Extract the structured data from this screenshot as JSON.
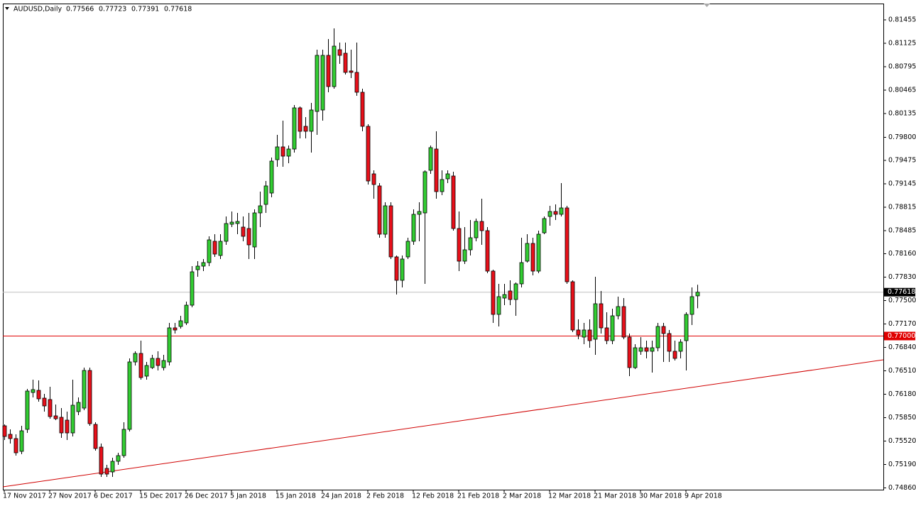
{
  "chart_data": {
    "type": "candlestick",
    "title": "AUDUSD,Daily",
    "categories": [
      "17 Nov 2017",
      null,
      null,
      null,
      null,
      null,
      null,
      null,
      "27 Nov 2017",
      null,
      null,
      null,
      null,
      null,
      null,
      null,
      "6 Dec 2017",
      null,
      null,
      null,
      null,
      null,
      null,
      null,
      "15 Dec 2017",
      null,
      null,
      null,
      null,
      null,
      null,
      null,
      "26 Dec 2017",
      null,
      null,
      null,
      null,
      null,
      null,
      null,
      "5 Jan 2018",
      null,
      null,
      null,
      null,
      null,
      null,
      null,
      "15 Jan 2018",
      null,
      null,
      null,
      null,
      null,
      null,
      null,
      "24 Jan 2018",
      null,
      null,
      null,
      null,
      null,
      null,
      null,
      "2 Feb 2018",
      null,
      null,
      null,
      null,
      null,
      null,
      null,
      "12 Feb 2018",
      null,
      null,
      null,
      null,
      null,
      null,
      null,
      "21 Feb 2018",
      null,
      null,
      null,
      null,
      null,
      null,
      null,
      "2 Mar 2018",
      null,
      null,
      null,
      null,
      null,
      null,
      null,
      "12 Mar 2018",
      null,
      null,
      null,
      null,
      null,
      null,
      null,
      "21 Mar 2018",
      null,
      null,
      null,
      null,
      null,
      null,
      null,
      "30 Mar 2018",
      null,
      null,
      null,
      null,
      null,
      null,
      null,
      "9 Apr 2018",
      null,
      null
    ],
    "open": [
      0.75735,
      0.75615,
      0.75555,
      0.75375,
      0.75685,
      0.76205,
      0.76235,
      0.76125,
      0.76105,
      0.75875,
      0.75855,
      0.75815,
      0.75635,
      0.75935,
      0.75985,
      0.76515,
      0.75755,
      0.75435,
      0.75135,
      0.75085,
      0.75235,
      0.75315,
      0.75685,
      0.76635,
      0.76755,
      0.76435,
      0.76555,
      0.76685,
      0.76555,
      0.76635,
      0.77115,
      0.77135,
      0.77185,
      0.77435,
      0.77935,
      0.77985,
      0.78035,
      0.78335,
      0.78135,
      0.78335,
      0.78575,
      0.78585,
      0.78535,
      0.78515,
      0.78255,
      0.78735,
      0.78855,
      0.79015,
      0.79485,
      0.79665,
      0.79535,
      0.79635,
      0.80215,
      0.79955,
      0.79885,
      0.80165,
      0.80185,
      0.80955,
      0.80515,
      0.81035,
      0.80985,
      0.80735,
      0.80715,
      0.80435,
      0.79955,
      0.79285,
      0.79115,
      0.78435,
      0.78835,
      0.78115,
      0.77785,
      0.78115,
      0.78335,
      0.78715,
      0.78735,
      0.79335,
      0.79635,
      0.79035,
      0.79215,
      0.79255,
      0.78515,
      0.78055,
      0.78215,
      0.78385,
      0.78615,
      0.78485,
      0.77915,
      0.77305,
      0.77535,
      0.77635,
      0.77515,
      0.77735,
      0.78055,
      0.78305,
      0.77915,
      0.78455,
      0.78685,
      0.78755,
      0.78715,
      0.78805,
      0.77765,
      0.77085,
      0.76985,
      0.77085,
      0.76955,
      0.77455,
      0.77115,
      0.76935,
      0.77285,
      0.77415,
      0.76985,
      0.76555,
      0.76785,
      0.76835,
      0.76785,
      0.76835,
      0.77135,
      0.77035,
      0.76785,
      0.76785,
      0.76935,
      0.77305,
      0.77566
    ],
    "high": [
      0.75755,
      0.75685,
      0.75615,
      0.75735,
      0.76255,
      0.76385,
      0.76375,
      0.76185,
      0.76285,
      0.76035,
      0.75985,
      0.75935,
      0.76385,
      0.76135,
      0.76555,
      0.76555,
      0.75785,
      0.75485,
      0.75185,
      0.75285,
      0.75355,
      0.75785,
      0.76685,
      0.76785,
      0.76935,
      0.76635,
      0.76735,
      0.76785,
      0.76735,
      0.77185,
      0.77185,
      0.77285,
      0.77485,
      0.77985,
      0.78055,
      0.78085,
      0.78405,
      0.78435,
      0.78435,
      0.78685,
      0.78755,
      0.78735,
      0.78685,
      0.78735,
      0.78785,
      0.79035,
      0.79185,
      0.79515,
      0.79835,
      0.80035,
      0.79685,
      0.80255,
      0.80235,
      0.80085,
      0.80285,
      0.81035,
      0.81035,
      0.81185,
      0.81335,
      0.81135,
      0.81135,
      0.81035,
      0.81135,
      0.80485,
      0.79985,
      0.79335,
      0.79155,
      0.78885,
      0.78885,
      0.78135,
      0.78135,
      0.78385,
      0.78785,
      0.78885,
      0.79335,
      0.79685,
      0.79885,
      0.79335,
      0.79335,
      0.79315,
      0.78755,
      0.78535,
      0.78635,
      0.78655,
      0.78935,
      0.78535,
      0.77935,
      0.77735,
      0.77735,
      0.77785,
      0.77755,
      0.78385,
      0.78435,
      0.78385,
      0.78485,
      0.78685,
      0.78835,
      0.78855,
      0.79155,
      0.78835,
      0.77785,
      0.77235,
      0.77185,
      0.77235,
      0.77835,
      0.77635,
      0.77335,
      0.77385,
      0.77555,
      0.77535,
      0.77035,
      0.76885,
      0.76985,
      0.76935,
      0.76935,
      0.77185,
      0.77185,
      0.77085,
      0.76935,
      0.76955,
      0.77335,
      0.77685,
      0.77723
    ],
    "low": [
      0.75535,
      0.75485,
      0.75315,
      0.75335,
      0.75635,
      0.76135,
      0.76075,
      0.75935,
      0.75835,
      0.75815,
      0.75565,
      0.75535,
      0.75585,
      0.75885,
      0.75955,
      0.75735,
      0.75385,
      0.75015,
      0.75015,
      0.75015,
      0.75185,
      0.75285,
      0.75655,
      0.76585,
      0.76385,
      0.76385,
      0.76535,
      0.76515,
      0.76515,
      0.76585,
      0.77035,
      0.77105,
      0.77155,
      0.77405,
      0.77835,
      0.77915,
      0.77985,
      0.78115,
      0.78085,
      0.78285,
      0.78535,
      0.78435,
      0.78335,
      0.78085,
      0.78085,
      0.78535,
      0.78735,
      0.78955,
      0.79385,
      0.79385,
      0.79435,
      0.79585,
      0.79785,
      0.79785,
      0.79585,
      0.79835,
      0.80035,
      0.80435,
      0.80485,
      0.80835,
      0.80685,
      0.80635,
      0.80385,
      0.79885,
      0.79135,
      0.78935,
      0.78385,
      0.78385,
      0.78085,
      0.77585,
      0.77685,
      0.78085,
      0.78285,
      0.78335,
      0.77735,
      0.79285,
      0.78935,
      0.78985,
      0.79155,
      0.78485,
      0.77915,
      0.78015,
      0.78135,
      0.78335,
      0.78285,
      0.77885,
      0.77185,
      0.77135,
      0.77435,
      0.77435,
      0.77285,
      0.77685,
      0.78035,
      0.77855,
      0.77885,
      0.78435,
      0.78555,
      0.78635,
      0.78685,
      0.77735,
      0.77055,
      0.76955,
      0.76885,
      0.76835,
      0.76735,
      0.77035,
      0.76885,
      0.76885,
      0.77235,
      0.76955,
      0.76435,
      0.76535,
      0.76735,
      0.76685,
      0.76485,
      0.76785,
      0.76635,
      0.76635,
      0.76655,
      0.76685,
      0.76515,
      0.77155,
      0.77391
    ],
    "close": [
      0.75585,
      0.75555,
      0.75355,
      0.75665,
      0.76225,
      0.76245,
      0.76115,
      0.76015,
      0.75865,
      0.75835,
      0.75635,
      0.75635,
      0.76025,
      0.76065,
      0.76515,
      0.75765,
      0.75415,
      0.75055,
      0.75055,
      0.75235,
      0.75315,
      0.75685,
      0.76635,
      0.76755,
      0.76415,
      0.76585,
      0.76685,
      0.76585,
      0.76655,
      0.77115,
      0.77085,
      0.77215,
      0.77435,
      0.77905,
      0.77985,
      0.78035,
      0.78355,
      0.78155,
      0.78335,
      0.78585,
      0.78605,
      0.78615,
      0.78405,
      0.78285,
      0.78735,
      0.78835,
      0.79115,
      0.79465,
      0.79665,
      0.79535,
      0.79635,
      0.80215,
      0.79885,
      0.79885,
      0.80185,
      0.80955,
      0.80955,
      0.80515,
      0.81085,
      0.80955,
      0.80715,
      0.80715,
      0.80435,
      0.79955,
      0.79185,
      0.79135,
      0.78435,
      0.78835,
      0.78115,
      0.77785,
      0.78085,
      0.78335,
      0.78715,
      0.78755,
      0.79315,
      0.79655,
      0.79035,
      0.79205,
      0.79285,
      0.78515,
      0.78055,
      0.78215,
      0.78385,
      0.78615,
      0.78485,
      0.77915,
      0.77305,
      0.77555,
      0.77585,
      0.77515,
      0.77735,
      0.78035,
      0.78305,
      0.77915,
      0.78435,
      0.78655,
      0.78755,
      0.78715,
      0.78805,
      0.77765,
      0.77085,
      0.77015,
      0.77085,
      0.76935,
      0.77455,
      0.77115,
      0.76935,
      0.77285,
      0.77415,
      0.76985,
      0.76555,
      0.76835,
      0.76835,
      0.76785,
      0.76835,
      0.77135,
      0.77035,
      0.76785,
      0.76685,
      0.76915,
      0.77305,
      0.77555,
      0.77618
    ],
    "up_color": "#32cd32",
    "down_color": "#e8101a",
    "ylim": [
      0.74835,
      0.81685
    ],
    "yticks": [
      {
        "value": 0.81455,
        "label": "0.81455"
      },
      {
        "value": 0.81125,
        "label": "0.81125"
      },
      {
        "value": 0.80795,
        "label": "0.80795"
      },
      {
        "value": 0.80465,
        "label": "0.80465"
      },
      {
        "value": 0.80135,
        "label": "0.80135"
      },
      {
        "value": 0.798,
        "label": "0.79800"
      },
      {
        "value": 0.79475,
        "label": "0.79475"
      },
      {
        "value": 0.79145,
        "label": "0.79145"
      },
      {
        "value": 0.78815,
        "label": "0.78815"
      },
      {
        "value": 0.78485,
        "label": "0.78485"
      },
      {
        "value": 0.7816,
        "label": "0.78160"
      },
      {
        "value": 0.7783,
        "label": "0.77830"
      },
      {
        "value": 0.775,
        "label": "0.77500"
      },
      {
        "value": 0.7717,
        "label": "0.77170"
      },
      {
        "value": 0.7684,
        "label": "0.76840"
      },
      {
        "value": 0.7651,
        "label": "0.76510"
      },
      {
        "value": 0.7618,
        "label": "0.76180"
      },
      {
        "value": 0.7585,
        "label": "0.75850"
      },
      {
        "value": 0.7552,
        "label": "0.75520"
      },
      {
        "value": 0.7519,
        "label": "0.75190"
      },
      {
        "value": 0.7486,
        "label": "0.74860"
      }
    ],
    "hline": {
      "value": 0.77,
      "label": "0.77000",
      "color": "#e00000"
    },
    "trendline": {
      "start": 0.74875,
      "end": 0.76665,
      "color": "#d00000"
    },
    "bid_line_color": "#c0c0c0"
  }
}
